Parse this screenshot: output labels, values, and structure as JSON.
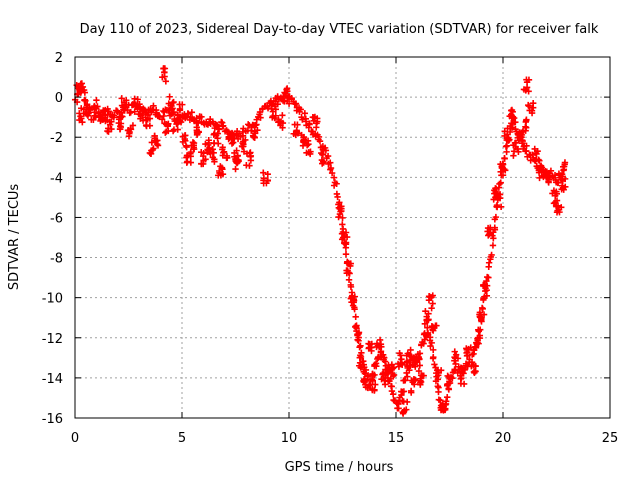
{
  "chart_data": {
    "type": "scatter",
    "title": "Day 110 of 2023, Sidereal Day-to-day VTEC variation (SDTVAR) for receiver falk",
    "xlabel": "GPS time / hours",
    "ylabel": "SDTVAR / TECUs",
    "xlim": [
      0,
      25
    ],
    "ylim": [
      -16,
      2
    ],
    "xticks": [
      0,
      5,
      10,
      15,
      20,
      25
    ],
    "yticks": [
      -16,
      -14,
      -12,
      -10,
      -8,
      -6,
      -4,
      -2,
      0,
      2
    ],
    "grid": true,
    "marker": "+",
    "color": "#ff0000",
    "series": [
      {
        "name": "falk",
        "trace": [
          [
            0.0,
            -0.2
          ],
          [
            0.2,
            0.3
          ],
          [
            0.35,
            0.6
          ],
          [
            0.5,
            -0.4
          ],
          [
            0.8,
            -0.9
          ],
          [
            1.2,
            -1.0
          ],
          [
            1.6,
            -0.7
          ],
          [
            2.0,
            -0.9
          ],
          [
            2.5,
            -0.6
          ],
          [
            2.8,
            -0.5
          ],
          [
            3.2,
            -0.8
          ],
          [
            3.6,
            -0.6
          ],
          [
            4.0,
            -0.9
          ],
          [
            4.4,
            -0.8
          ],
          [
            4.8,
            -1.1
          ],
          [
            5.2,
            -0.9
          ],
          [
            5.6,
            -1.0
          ],
          [
            6.0,
            -1.2
          ],
          [
            6.4,
            -1.3
          ],
          [
            6.8,
            -1.4
          ],
          [
            7.2,
            -1.8
          ],
          [
            7.6,
            -1.9
          ],
          [
            8.0,
            -1.6
          ],
          [
            8.3,
            -1.4
          ],
          [
            8.6,
            -1.0
          ],
          [
            8.9,
            -0.6
          ],
          [
            9.2,
            -0.3
          ],
          [
            9.5,
            -0.1
          ],
          [
            9.8,
            0.0
          ],
          [
            10.1,
            -0.2
          ],
          [
            10.4,
            -0.5
          ],
          [
            10.7,
            -1.0
          ],
          [
            11.0,
            -1.5
          ],
          [
            11.3,
            -2.0
          ],
          [
            11.6,
            -2.6
          ],
          [
            11.9,
            -3.3
          ],
          [
            12.3,
            -4.9
          ],
          [
            12.5,
            -6.4
          ],
          [
            12.7,
            -7.9
          ],
          [
            12.9,
            -9.5
          ],
          [
            13.1,
            -11.0
          ],
          [
            13.3,
            -12.4
          ],
          [
            13.5,
            -13.7
          ],
          [
            13.7,
            -14.6
          ],
          [
            13.9,
            -13.9
          ],
          [
            14.1,
            -13.1
          ],
          [
            14.3,
            -12.7
          ],
          [
            14.5,
            -13.3
          ],
          [
            14.7,
            -14.1
          ],
          [
            14.9,
            -14.9
          ],
          [
            15.1,
            -15.5
          ],
          [
            15.3,
            -14.6
          ],
          [
            15.5,
            -13.8
          ],
          [
            15.7,
            -13.1
          ],
          [
            15.9,
            -13.2
          ],
          [
            16.1,
            -12.8
          ],
          [
            16.3,
            -12.0
          ],
          [
            16.5,
            -11.6
          ],
          [
            16.7,
            -12.6
          ],
          [
            16.9,
            -14.2
          ],
          [
            17.1,
            -15.3
          ],
          [
            17.3,
            -15.6
          ],
          [
            17.6,
            -13.8
          ],
          [
            17.9,
            -13.6
          ],
          [
            18.2,
            -13.5
          ],
          [
            18.5,
            -13.2
          ],
          [
            18.7,
            -12.6
          ],
          [
            18.9,
            -11.4
          ],
          [
            19.1,
            -10.2
          ],
          [
            19.3,
            -8.9
          ],
          [
            19.5,
            -7.4
          ],
          [
            19.7,
            -5.5
          ],
          [
            19.9,
            -4.1
          ],
          [
            20.1,
            -2.9
          ],
          [
            20.3,
            -1.6
          ],
          [
            20.5,
            -1.2
          ],
          [
            20.7,
            -1.9
          ],
          [
            20.9,
            -2.3
          ],
          [
            21.1,
            -2.7
          ],
          [
            21.4,
            -3.1
          ],
          [
            21.7,
            -3.5
          ],
          [
            22.0,
            -3.8
          ],
          [
            22.3,
            -3.9
          ],
          [
            22.6,
            -4.1
          ],
          [
            22.8,
            -3.7
          ],
          [
            22.9,
            -3.3
          ]
        ],
        "clusters": [
          [
            0.2,
            0.3
          ],
          [
            0.3,
            -0.9
          ],
          [
            0.6,
            -0.6
          ],
          [
            1.0,
            -0.4
          ],
          [
            1.3,
            -0.9
          ],
          [
            1.6,
            -1.4
          ],
          [
            2.1,
            -1.3
          ],
          [
            2.3,
            -0.3
          ],
          [
            2.6,
            -1.6
          ],
          [
            2.9,
            -0.4
          ],
          [
            3.1,
            -0.9
          ],
          [
            3.4,
            -1.1
          ],
          [
            3.6,
            -2.5
          ],
          [
            3.8,
            -2.1
          ],
          [
            4.2,
            1.1
          ],
          [
            4.3,
            -1.6
          ],
          [
            4.5,
            -0.3
          ],
          [
            4.7,
            -1.4
          ],
          [
            4.9,
            -0.7
          ],
          [
            5.1,
            -2.2
          ],
          [
            5.3,
            -3.1
          ],
          [
            5.5,
            -2.6
          ],
          [
            5.8,
            -1.6
          ],
          [
            6.0,
            -3.0
          ],
          [
            6.2,
            -2.4
          ],
          [
            6.4,
            -2.9
          ],
          [
            6.6,
            -2.0
          ],
          [
            6.8,
            -3.6
          ],
          [
            7.0,
            -2.8
          ],
          [
            7.3,
            -2.0
          ],
          [
            7.5,
            -3.0
          ],
          [
            7.6,
            -3.3
          ],
          [
            7.9,
            -2.4
          ],
          [
            8.1,
            -3.1
          ],
          [
            8.4,
            -1.8
          ],
          [
            8.9,
            -4.1
          ],
          [
            9.3,
            -0.7
          ],
          [
            9.6,
            -1.2
          ],
          [
            9.9,
            0.1
          ],
          [
            10.3,
            -1.6
          ],
          [
            10.6,
            -2.2
          ],
          [
            10.9,
            -2.5
          ],
          [
            11.2,
            -1.3
          ],
          [
            11.5,
            -3.0
          ],
          [
            12.4,
            -5.7
          ],
          [
            12.6,
            -7.0
          ],
          [
            12.8,
            -8.6
          ],
          [
            13.0,
            -10.2
          ],
          [
            13.2,
            -11.7
          ],
          [
            13.4,
            -13.2
          ],
          [
            13.6,
            -13.9
          ],
          [
            13.8,
            -12.6
          ],
          [
            14.0,
            -14.3
          ],
          [
            14.2,
            -12.4
          ],
          [
            14.4,
            -14.0
          ],
          [
            14.6,
            -13.7
          ],
          [
            14.8,
            -13.6
          ],
          [
            15.2,
            -13.1
          ],
          [
            15.4,
            -15.5
          ],
          [
            15.6,
            -12.9
          ],
          [
            15.8,
            -14.4
          ],
          [
            16.0,
            -13.4
          ],
          [
            16.2,
            -14.0
          ],
          [
            16.4,
            -11.0
          ],
          [
            16.6,
            -10.2
          ],
          [
            16.8,
            -11.3
          ],
          [
            17.0,
            -13.8
          ],
          [
            17.2,
            -15.3
          ],
          [
            17.5,
            -14.2
          ],
          [
            17.8,
            -13.0
          ],
          [
            18.1,
            -14.0
          ],
          [
            18.4,
            -12.6
          ],
          [
            18.6,
            -13.4
          ],
          [
            18.8,
            -12.2
          ],
          [
            19.0,
            -10.9
          ],
          [
            19.2,
            -9.7
          ],
          [
            19.4,
            -6.8
          ],
          [
            19.6,
            -4.8
          ],
          [
            19.8,
            -5.2
          ],
          [
            20.0,
            -3.6
          ],
          [
            20.2,
            -1.9
          ],
          [
            20.4,
            -0.9
          ],
          [
            20.6,
            -2.6
          ],
          [
            20.8,
            -2.0
          ],
          [
            21.0,
            -1.4
          ],
          [
            21.1,
            0.6
          ],
          [
            21.3,
            -0.5
          ],
          [
            21.6,
            -2.9
          ],
          [
            21.8,
            -3.7
          ],
          [
            22.1,
            -4.0
          ],
          [
            22.4,
            -5.0
          ],
          [
            22.6,
            -5.5
          ],
          [
            22.8,
            -4.3
          ]
        ]
      }
    ]
  }
}
